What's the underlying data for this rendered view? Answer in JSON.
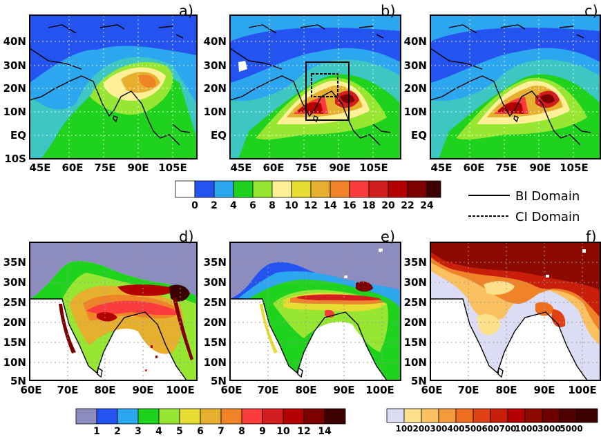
{
  "colors": {
    "white": "#ffffff",
    "lav": "#8c8cbe",
    "blue": "#2453f0",
    "sky": "#2da6f0",
    "cyan": "#3ec7c2",
    "green": "#1ed21e",
    "lgreen": "#96e632",
    "cream": "#ffef96",
    "yellow": "#e6dc32",
    "gold": "#e6af2d",
    "orange": "#f08228",
    "salmon": "#fa3c3c",
    "red": "#d21e1e",
    "dred": "#b40000",
    "maroon": "#7d0000",
    "dark": "#3c0000",
    "lavlight": "#dcdcf5",
    "f_o1": "#fde08a",
    "f_o2": "#fbc060",
    "f_o3": "#f59a3c",
    "f_o4": "#ef6e1e",
    "f_o5": "#e04014",
    "f_r1": "#c81e0a",
    "f_r2": "#8c0a00"
  },
  "top_panels": [
    {
      "label": "a)",
      "lat_ticks": [
        "40N",
        "30N",
        "20N",
        "10N",
        "EQ",
        "10S"
      ],
      "lon_ticks": [
        "45E",
        "60E",
        "75E",
        "90E",
        "105E"
      ]
    },
    {
      "label": "b)",
      "lat_ticks": [
        "40N",
        "30N",
        "20N",
        "10N",
        "EQ"
      ],
      "lon_ticks": [
        "45E",
        "60E",
        "75E",
        "90E",
        "105E"
      ]
    },
    {
      "label": "c)",
      "lat_ticks": [
        "40N",
        "30N",
        "20N",
        "10N",
        "EQ"
      ],
      "lon_ticks": [
        "45E",
        "60E",
        "75E",
        "90E",
        "105E"
      ]
    }
  ],
  "bottom_panels": [
    {
      "label": "d)",
      "lat_ticks": [
        "35N",
        "30N",
        "25N",
        "20N",
        "15N",
        "10N",
        "5N"
      ],
      "lon_ticks": [
        "60E",
        "70E",
        "80E",
        "90E",
        "100E"
      ]
    },
    {
      "label": "e)",
      "lat_ticks": [
        "35N",
        "30N",
        "25N",
        "20N",
        "15N",
        "10N",
        "5N"
      ],
      "lon_ticks": [
        "60E",
        "70E",
        "80E",
        "90E",
        "100E"
      ]
    },
    {
      "label": "f)",
      "lat_ticks": [
        "35N",
        "30N",
        "25N",
        "20N",
        "15N",
        "10N",
        "5N"
      ],
      "lon_ticks": [
        "60E",
        "70E",
        "80E",
        "90E",
        "100E"
      ]
    }
  ],
  "legend_top": {
    "labels": [
      "0",
      "2",
      "4",
      "6",
      "8",
      "10",
      "12",
      "14",
      "16",
      "18",
      "20",
      "22",
      "24"
    ]
  },
  "legend_bottom_left": {
    "labels": [
      "1",
      "2",
      "3",
      "4",
      "5",
      "6",
      "7",
      "8",
      "9",
      "10",
      "12",
      "14"
    ]
  },
  "legend_bottom_right": {
    "labels": [
      "100",
      "200",
      "300",
      "400",
      "500",
      "600",
      "700",
      "1000",
      "3000",
      "5000"
    ]
  },
  "domain_legend": {
    "bi_label": "BI Domain",
    "ci_label": "CI Domain"
  }
}
